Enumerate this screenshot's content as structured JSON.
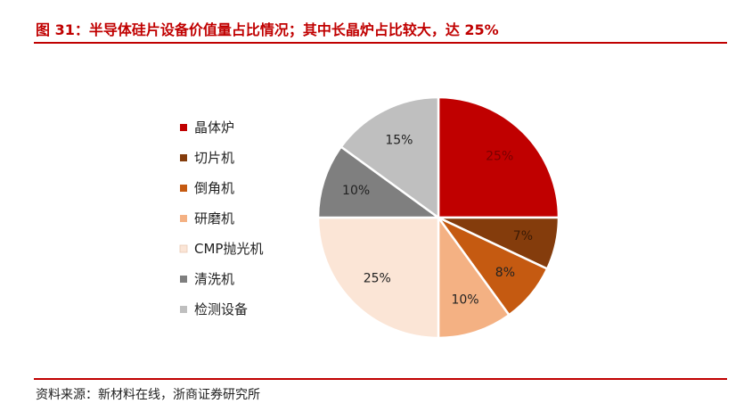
{
  "title": "图 31：半导体硅片设备价值量占比情况；其中长晶炉占比较大，达 25%",
  "source": "资料来源：新材料在线，浙商证券研究所",
  "chart_data": {
    "type": "pie",
    "legend_position": "left",
    "slices": [
      {
        "name": "晶体炉",
        "value": 25,
        "label": "25%",
        "color": "#C00000",
        "label_color": "#7a0000"
      },
      {
        "name": "切片机",
        "value": 7,
        "label": "7%",
        "color": "#843C0C",
        "label_color": "#3a1a05"
      },
      {
        "name": "倒角机",
        "value": 8,
        "label": "8%",
        "color": "#C55A11",
        "label_color": "#222222"
      },
      {
        "name": "研磨机",
        "value": 10,
        "label": "10%",
        "color": "#F4B183",
        "label_color": "#222222"
      },
      {
        "name": "CMP抛光机",
        "value": 25,
        "label": "25%",
        "color": "#FBE5D6",
        "label_color": "#222222"
      },
      {
        "name": "清洗机",
        "value": 10,
        "label": "10%",
        "color": "#7F7F7F",
        "label_color": "#222222"
      },
      {
        "name": "检测设备",
        "value": 15,
        "label": "15%",
        "color": "#BFBFBF",
        "label_color": "#222222"
      }
    ]
  }
}
